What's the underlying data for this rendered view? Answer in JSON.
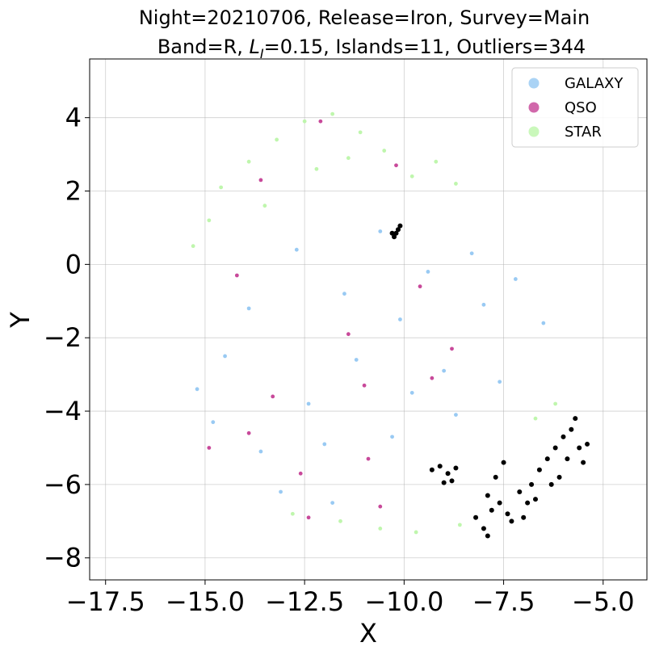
{
  "chart_data": {
    "type": "scatter",
    "title_line1": "Night=20210706, Release=Iron, Survey=Main",
    "title_line2_prefix": "Band=R, ",
    "title_line2_symbol": "L",
    "title_line2_subscript": "I",
    "title_line2_suffix": "=0.15, Islands=11, Outliers=344",
    "xlabel": "X",
    "ylabel": "Y",
    "xlim": [
      -17.9,
      -3.9
    ],
    "ylim": [
      -8.6,
      5.6
    ],
    "x_ticks": [
      -17.5,
      -15.0,
      -12.5,
      -10.0,
      -7.5,
      -5.0
    ],
    "x_tick_labels": [
      "−17.5",
      "−15.0",
      "−12.5",
      "−10.0",
      "−7.5",
      "−5.0"
    ],
    "y_ticks": [
      -8,
      -6,
      -4,
      -2,
      0,
      2,
      4
    ],
    "y_tick_labels": [
      "−8",
      "−6",
      "−4",
      "−2",
      "0",
      "2",
      "4"
    ],
    "grid": true,
    "legend_position": "top-right",
    "series": [
      {
        "name": "GALAXY",
        "color": "#8ec4f2",
        "points": [
          [
            -14.8,
            -4.3
          ],
          [
            -13.6,
            -5.1
          ],
          [
            -12.4,
            -3.8
          ],
          [
            -11.2,
            -2.6
          ],
          [
            -10.1,
            -1.5
          ],
          [
            -9.0,
            -2.9
          ],
          [
            -8.0,
            -1.1
          ],
          [
            -7.2,
            -0.4
          ],
          [
            -6.5,
            -1.6
          ],
          [
            -13.9,
            -1.2
          ],
          [
            -12.7,
            0.4
          ],
          [
            -11.5,
            -0.8
          ],
          [
            -10.6,
            0.9
          ],
          [
            -9.4,
            -0.2
          ],
          [
            -14.5,
            -2.5
          ],
          [
            -13.1,
            -6.2
          ],
          [
            -11.8,
            -6.5
          ],
          [
            -10.3,
            -4.7
          ],
          [
            -8.7,
            -4.1
          ],
          [
            -7.6,
            -3.2
          ],
          [
            -15.2,
            -3.4
          ],
          [
            -12.0,
            -4.9
          ],
          [
            -9.8,
            -3.5
          ],
          [
            -8.3,
            0.3
          ]
        ]
      },
      {
        "name": "QSO",
        "color": "#c2358f",
        "points": [
          [
            -13.6,
            2.3
          ],
          [
            -12.1,
            3.9
          ],
          [
            -10.2,
            2.7
          ],
          [
            -14.2,
            -0.3
          ],
          [
            -11.4,
            -1.9
          ],
          [
            -9.6,
            -0.6
          ],
          [
            -13.3,
            -3.6
          ],
          [
            -12.6,
            -5.7
          ],
          [
            -10.9,
            -5.3
          ],
          [
            -9.3,
            -3.1
          ],
          [
            -14.9,
            -5.0
          ],
          [
            -8.8,
            -2.3
          ],
          [
            -12.4,
            -6.9
          ],
          [
            -10.6,
            -6.6
          ],
          [
            -13.9,
            -4.6
          ],
          [
            -11.0,
            -3.3
          ]
        ]
      },
      {
        "name": "STAR",
        "color": "#b8f5a4",
        "points": [
          [
            -14.6,
            2.1
          ],
          [
            -13.9,
            2.8
          ],
          [
            -13.2,
            3.4
          ],
          [
            -12.5,
            3.9
          ],
          [
            -11.8,
            4.1
          ],
          [
            -11.1,
            3.6
          ],
          [
            -10.5,
            3.1
          ],
          [
            -9.8,
            2.4
          ],
          [
            -9.2,
            2.8
          ],
          [
            -8.7,
            2.2
          ],
          [
            -14.9,
            1.2
          ],
          [
            -15.3,
            0.5
          ],
          [
            -13.5,
            1.6
          ],
          [
            -12.2,
            2.6
          ],
          [
            -11.4,
            2.9
          ],
          [
            -10.6,
            -7.2
          ],
          [
            -11.6,
            -7.0
          ],
          [
            -9.7,
            -7.3
          ],
          [
            -8.6,
            -7.1
          ],
          [
            -12.8,
            -6.8
          ],
          [
            -6.7,
            -4.2
          ],
          [
            -6.2,
            -3.8
          ]
        ]
      }
    ],
    "outliers": {
      "color": "#000000",
      "points": [
        [
          -10.25,
          0.75
        ],
        [
          -10.2,
          0.85
        ],
        [
          -10.15,
          0.95
        ],
        [
          -10.1,
          1.05
        ],
        [
          -10.3,
          0.85
        ],
        [
          -9.3,
          -5.6
        ],
        [
          -9.1,
          -5.5
        ],
        [
          -8.9,
          -5.7
        ],
        [
          -8.8,
          -5.9
        ],
        [
          -9.0,
          -5.95
        ],
        [
          -8.7,
          -5.55
        ],
        [
          -8.2,
          -6.9
        ],
        [
          -8.0,
          -7.2
        ],
        [
          -7.9,
          -7.4
        ],
        [
          -7.8,
          -6.7
        ],
        [
          -7.9,
          -6.3
        ],
        [
          -7.6,
          -6.5
        ],
        [
          -7.4,
          -6.8
        ],
        [
          -7.3,
          -7.0
        ],
        [
          -7.7,
          -5.8
        ],
        [
          -7.5,
          -5.4
        ],
        [
          -7.1,
          -6.2
        ],
        [
          -6.9,
          -6.5
        ],
        [
          -6.8,
          -6.0
        ],
        [
          -6.6,
          -5.6
        ],
        [
          -6.4,
          -5.3
        ],
        [
          -6.3,
          -6.0
        ],
        [
          -6.2,
          -5.0
        ],
        [
          -6.0,
          -4.7
        ],
        [
          -5.9,
          -5.3
        ],
        [
          -5.8,
          -4.5
        ],
        [
          -5.7,
          -4.2
        ],
        [
          -5.6,
          -5.0
        ],
        [
          -5.4,
          -4.9
        ],
        [
          -5.5,
          -5.4
        ],
        [
          -6.1,
          -5.8
        ],
        [
          -7.0,
          -6.9
        ],
        [
          -6.7,
          -6.4
        ]
      ]
    }
  }
}
